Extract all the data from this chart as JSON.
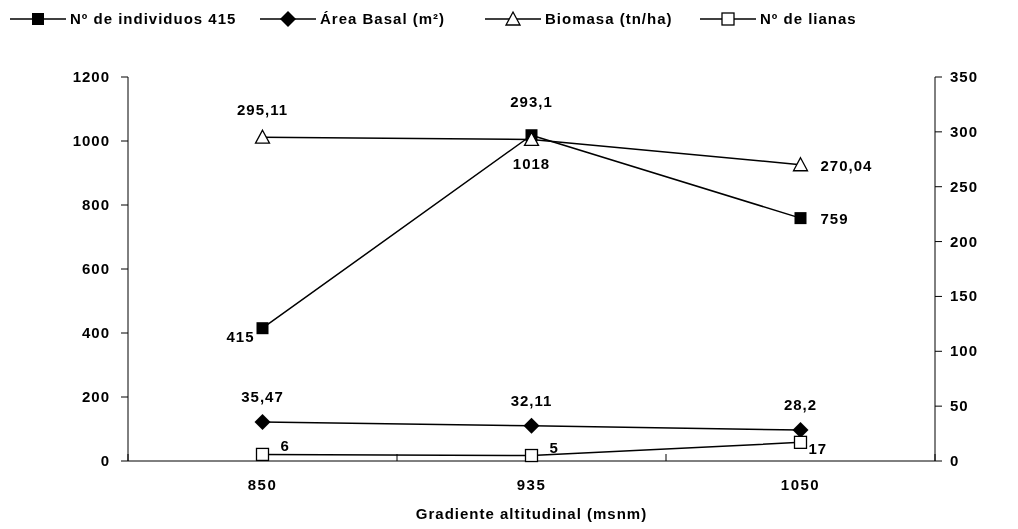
{
  "chart_data": {
    "type": "line",
    "xlabel": "Gradiente altitudinal (msnm)",
    "categories": [
      "850",
      "935",
      "1050"
    ],
    "series": [
      {
        "name": "Nº de individuos 415",
        "color": "#000000",
        "marker": "square",
        "values": [
          415,
          1018,
          759
        ],
        "value_labels": [
          "415",
          "1018",
          "759"
        ]
      },
      {
        "name": "Área Basal (m²)",
        "color": "#000000",
        "marker": "diamond",
        "axis": "y2",
        "values": [
          35.47,
          32.11,
          28.2
        ],
        "value_labels": [
          "35,47",
          "32,11",
          "28,2"
        ]
      },
      {
        "name": "Biomasa (tn/ha)",
        "color": "#000000",
        "marker": "triangle",
        "axis": "y2",
        "values": [
          295.11,
          293.1,
          270.04
        ],
        "value_labels": [
          "295,11",
          "293,1",
          "270,04"
        ]
      },
      {
        "name": "Nº de lianas",
        "color": "#000000",
        "marker": "square-open",
        "axis": "y2",
        "values": [
          6,
          5,
          17
        ],
        "value_labels": [
          "6",
          "5",
          "17"
        ]
      }
    ],
    "ylim": [
      0,
      1200
    ],
    "yticks": [
      0,
      200,
      400,
      600,
      800,
      1000,
      1200
    ],
    "y2lim": [
      0,
      350
    ],
    "y2ticks": [
      0,
      50,
      100,
      150,
      200,
      250,
      300,
      350
    ],
    "legend": "top",
    "grid": false
  }
}
